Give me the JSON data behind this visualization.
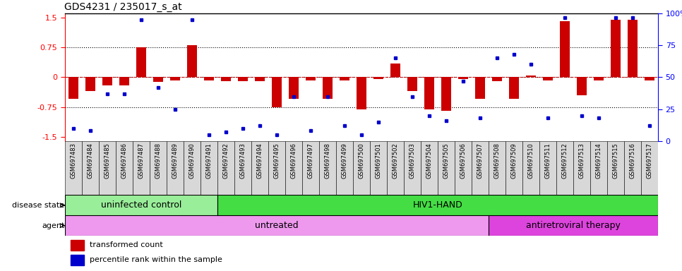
{
  "title": "GDS4231 / 235017_s_at",
  "samples": [
    "GSM697483",
    "GSM697484",
    "GSM697485",
    "GSM697486",
    "GSM697487",
    "GSM697488",
    "GSM697489",
    "GSM697490",
    "GSM697491",
    "GSM697492",
    "GSM697493",
    "GSM697494",
    "GSM697495",
    "GSM697496",
    "GSM697497",
    "GSM697498",
    "GSM697499",
    "GSM697500",
    "GSM697501",
    "GSM697502",
    "GSM697503",
    "GSM697504",
    "GSM697505",
    "GSM697506",
    "GSM697507",
    "GSM697508",
    "GSM697509",
    "GSM697510",
    "GSM697511",
    "GSM697512",
    "GSM697513",
    "GSM697514",
    "GSM697515",
    "GSM697516",
    "GSM697517"
  ],
  "red_bars": [
    -0.55,
    -0.35,
    -0.2,
    -0.2,
    0.75,
    -0.12,
    -0.08,
    0.8,
    -0.08,
    -0.1,
    -0.1,
    -0.1,
    -0.75,
    -0.55,
    -0.08,
    -0.55,
    -0.08,
    -0.8,
    -0.05,
    0.35,
    -0.35,
    -0.8,
    -0.85,
    -0.05,
    -0.55,
    -0.1,
    -0.55,
    0.05,
    -0.08,
    1.4,
    -0.45,
    -0.08,
    1.45,
    1.45,
    -0.08
  ],
  "blue_dots": [
    10,
    8,
    37,
    37,
    95,
    42,
    25,
    95,
    5,
    7,
    10,
    12,
    5,
    35,
    8,
    35,
    12,
    5,
    15,
    65,
    35,
    20,
    16,
    47,
    18,
    65,
    68,
    60,
    18,
    97,
    20,
    18,
    97,
    97,
    12
  ],
  "ylim": [
    -1.6,
    1.6
  ],
  "yticks_left": [
    -1.5,
    -0.75,
    0,
    0.75,
    1.5
  ],
  "ytick_labels_left": [
    "-1.5",
    "-0.75",
    "0",
    "0.75",
    "1.5"
  ],
  "right_yticks": [
    0,
    25,
    50,
    75,
    100
  ],
  "right_ytick_labels": [
    "0",
    "25",
    "50",
    "75",
    "100%"
  ],
  "hlines": [
    -0.75,
    0.0,
    0.75
  ],
  "bar_color": "#CC0000",
  "dot_color": "#0000CC",
  "zero_line_color": "#CC0000",
  "tick_bg_color": "#D8D8D8",
  "disease_state_groups": [
    {
      "label": "uninfected control",
      "start": 0,
      "end": 9,
      "color": "#99EE99"
    },
    {
      "label": "HIV1-HAND",
      "start": 9,
      "end": 35,
      "color": "#44DD44"
    }
  ],
  "agent_groups": [
    {
      "label": "untreated",
      "start": 0,
      "end": 25,
      "color": "#EE99EE"
    },
    {
      "label": "antiretroviral therapy",
      "start": 25,
      "end": 35,
      "color": "#DD44DD"
    }
  ],
  "disease_state_label": "disease state",
  "agent_label": "agent",
  "legend_red_label": "transformed count",
  "legend_blue_label": "percentile rank within the sample"
}
